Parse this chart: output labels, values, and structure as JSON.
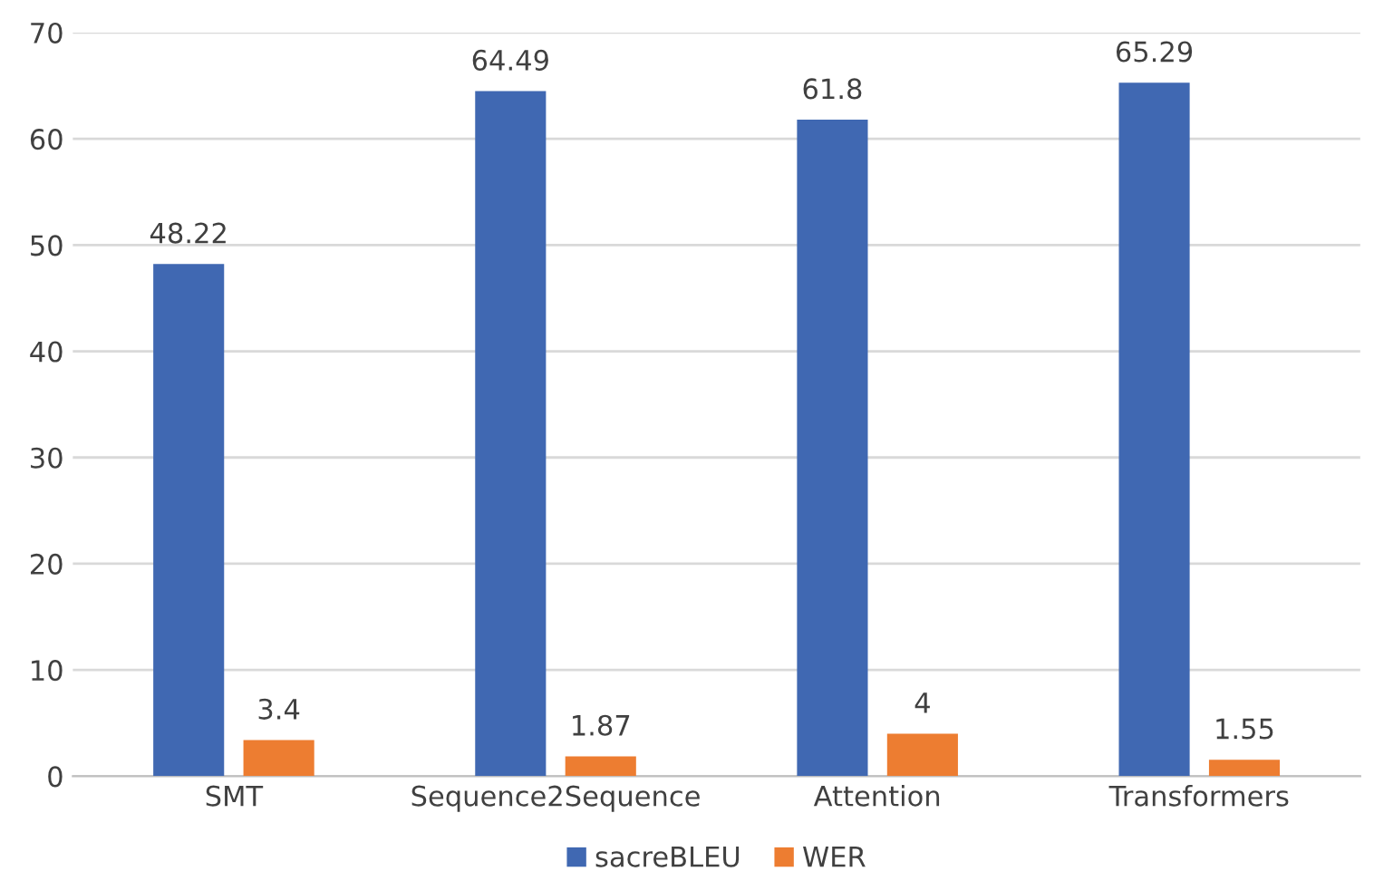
{
  "chart_data": {
    "type": "bar",
    "categories": [
      "SMT",
      "Sequence2Sequence",
      "Attention",
      "Transformers"
    ],
    "series": [
      {
        "name": "sacreBLEU",
        "color": "#4068b2",
        "values": [
          48.22,
          64.49,
          61.8,
          65.29
        ]
      },
      {
        "name": "WER",
        "color": "#ed7d31",
        "values": [
          3.4,
          1.87,
          4,
          1.55
        ]
      }
    ],
    "ylim": [
      0,
      70
    ],
    "yticks": [
      0,
      10,
      20,
      30,
      40,
      50,
      60,
      70
    ],
    "grid": "y",
    "legend": "bottom",
    "data_labels": true
  }
}
